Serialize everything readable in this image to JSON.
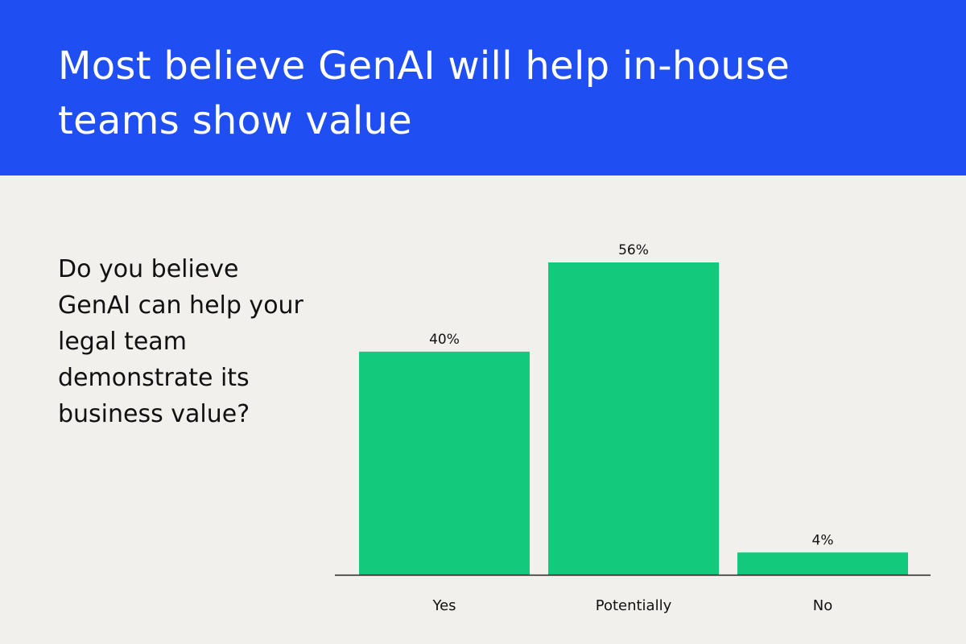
{
  "header": {
    "title": "Most believe GenAI will help in-house teams show value"
  },
  "question": "Do you believe GenAI can help your legal team demonstrate its business value?",
  "colors": {
    "header_bg": "#1f4ef2",
    "page_bg": "#f2f0ec",
    "bar": "#13c97c",
    "axis": "#222222"
  },
  "chart_data": {
    "type": "bar",
    "categories": [
      "Yes",
      "Potentially",
      "No"
    ],
    "values": [
      40,
      56,
      4
    ],
    "value_labels": [
      "40%",
      "56%",
      "4%"
    ],
    "unit": "%",
    "ylim": [
      0,
      56
    ],
    "grid": false,
    "legend": "none"
  }
}
